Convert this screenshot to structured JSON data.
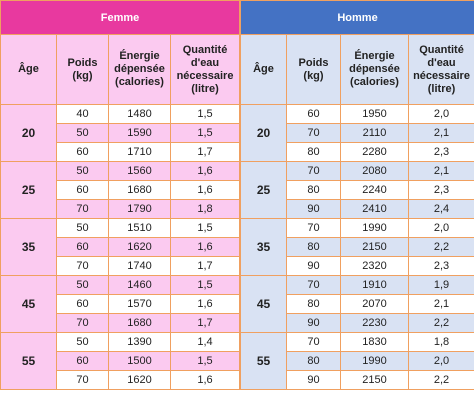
{
  "tables": [
    {
      "title": "Femme",
      "headers": [
        "Âge",
        "Poids (kg)",
        "Énergie dépensée (calories)",
        "Quantité d'eau nécessaire (litre)"
      ],
      "groups": [
        {
          "age": 20,
          "rows": [
            [
              40,
              1480,
              "1,5"
            ],
            [
              50,
              1590,
              "1,5"
            ],
            [
              60,
              1710,
              "1,7"
            ]
          ]
        },
        {
          "age": 25,
          "rows": [
            [
              50,
              1560,
              "1,6"
            ],
            [
              60,
              1680,
              "1,6"
            ],
            [
              70,
              1790,
              "1,8"
            ]
          ]
        },
        {
          "age": 35,
          "rows": [
            [
              50,
              1510,
              "1,5"
            ],
            [
              60,
              1620,
              "1,6"
            ],
            [
              70,
              1740,
              "1,7"
            ]
          ]
        },
        {
          "age": 45,
          "rows": [
            [
              50,
              1460,
              "1,5"
            ],
            [
              60,
              1570,
              "1,6"
            ],
            [
              70,
              1680,
              "1,7"
            ]
          ]
        },
        {
          "age": 55,
          "rows": [
            [
              50,
              1390,
              "1,4"
            ],
            [
              60,
              1500,
              "1,5"
            ],
            [
              70,
              1620,
              "1,6"
            ]
          ]
        }
      ]
    },
    {
      "title": "Homme",
      "headers": [
        "Âge",
        "Poids (kg)",
        "Énergie dépensée (calories)",
        "Quantité d'eau nécessaire (litre)"
      ],
      "groups": [
        {
          "age": 20,
          "rows": [
            [
              60,
              1950,
              "2,0"
            ],
            [
              70,
              2110,
              "2,1"
            ],
            [
              80,
              2280,
              "2,3"
            ]
          ]
        },
        {
          "age": 25,
          "rows": [
            [
              70,
              2080,
              "2,1"
            ],
            [
              80,
              2240,
              "2,3"
            ],
            [
              90,
              2410,
              "2,4"
            ]
          ]
        },
        {
          "age": 35,
          "rows": [
            [
              70,
              1990,
              "2,0"
            ],
            [
              80,
              2150,
              "2,2"
            ],
            [
              90,
              2320,
              "2,3"
            ]
          ]
        },
        {
          "age": 45,
          "rows": [
            [
              70,
              1910,
              "1,9"
            ],
            [
              80,
              2070,
              "2,1"
            ],
            [
              90,
              2230,
              "2,2"
            ]
          ]
        },
        {
          "age": 55,
          "rows": [
            [
              70,
              1830,
              "1,8"
            ],
            [
              80,
              1990,
              "2,0"
            ],
            [
              90,
              2150,
              "2,2"
            ]
          ]
        }
      ]
    }
  ]
}
